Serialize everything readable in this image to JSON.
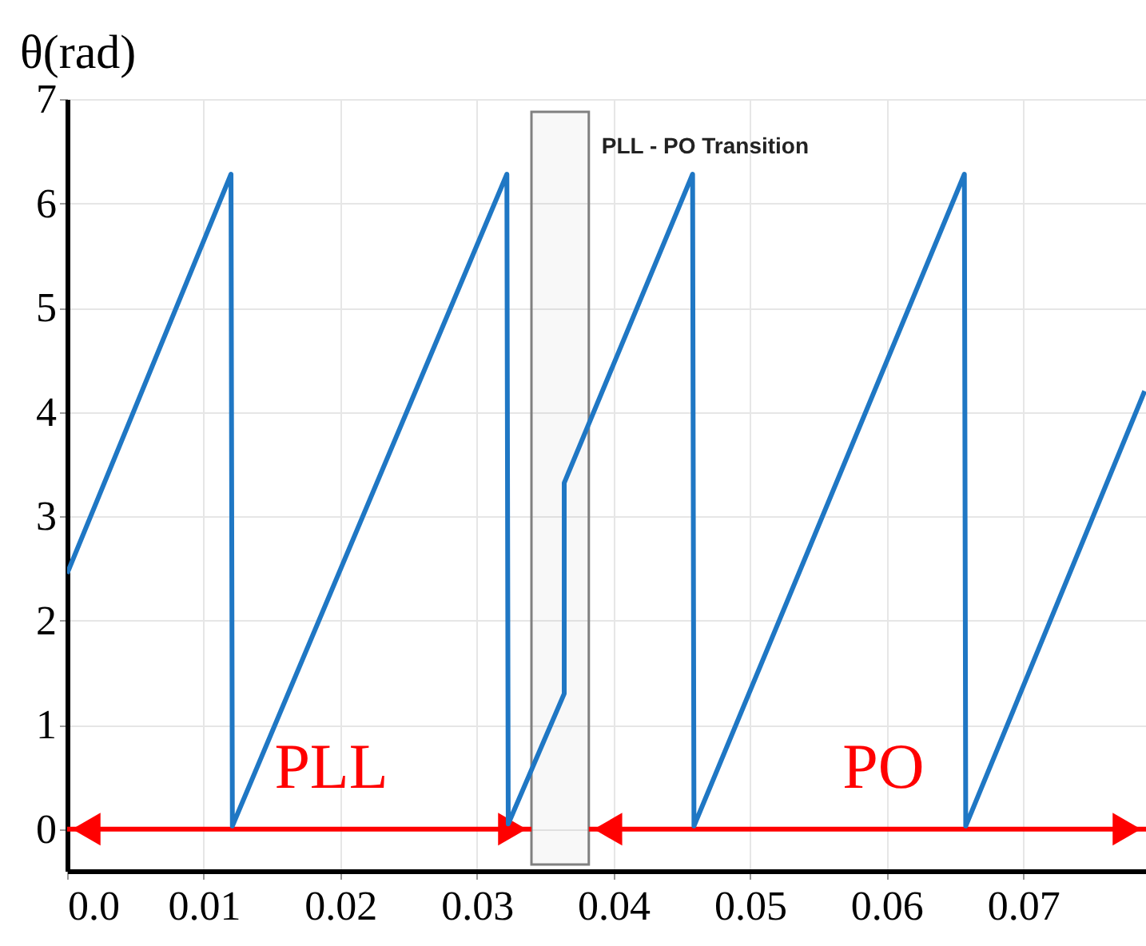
{
  "chart_data": {
    "type": "line",
    "ylabel": "θ(rad)",
    "x": [
      0,
      0.012,
      0.0121,
      0.0322,
      0.0323,
      0.0364,
      0.0364,
      0.0458,
      0.0459,
      0.0657,
      0.0658,
      0.0789
    ],
    "series": [
      {
        "color": "#1f77c4",
        "values": [
          2.45,
          6.28,
          0.03,
          6.28,
          0.05,
          1.3,
          3.32,
          6.28,
          0.03,
          6.28,
          0.03,
          4.2
        ]
      }
    ],
    "xlim": [
      0,
      0.079
    ],
    "ylim": [
      -0.4,
      7
    ],
    "xticks": [
      {
        "value": 0,
        "label": "0.0"
      },
      0.01,
      0.02,
      0.03,
      0.04,
      0.05,
      0.06,
      0.07
    ],
    "yticks": [
      0,
      1,
      2,
      3,
      4,
      5,
      6,
      7
    ],
    "bands": [
      {
        "axis": "x",
        "from": 0.034,
        "to": 0.0382,
        "label": "PLL - PO Transition",
        "color": "#808080"
      }
    ],
    "annotations": [
      "PLL",
      "PO"
    ],
    "grid": true,
    "marker": "none",
    "line_style": "solid"
  }
}
